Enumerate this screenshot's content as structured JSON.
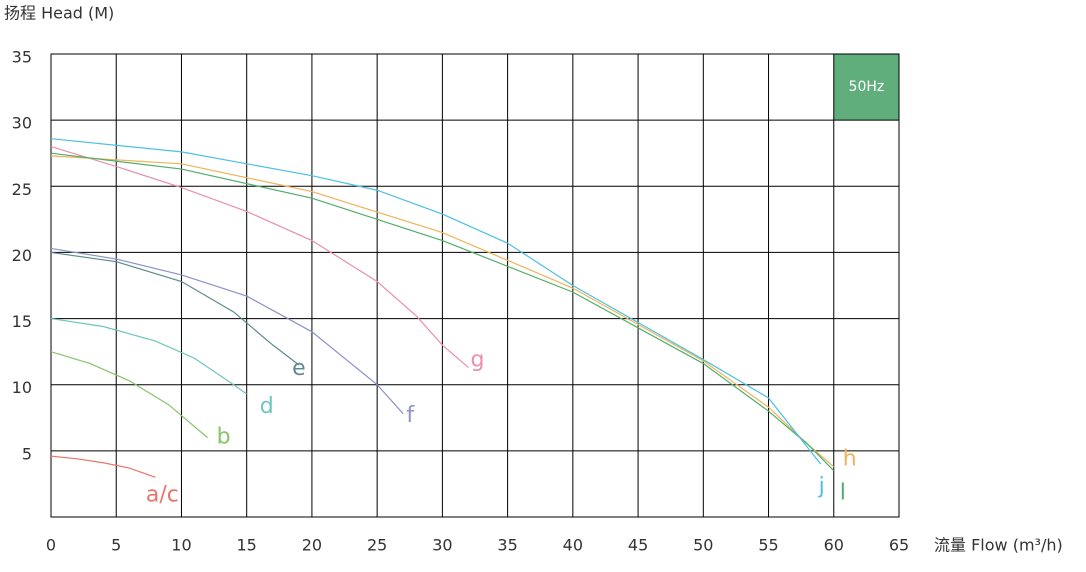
{
  "chart_data": {
    "type": "line",
    "y_axis_label": "扬程 Head (M)",
    "x_axis_label": "流量 Flow (m³/h)",
    "annotation": "50Hz",
    "annotation_color": "#5fae7c",
    "xlim": [
      0,
      65
    ],
    "xticks": [
      0,
      5,
      10,
      15,
      20,
      25,
      30,
      35,
      40,
      45,
      50,
      55,
      60,
      65
    ],
    "ylim": [
      0,
      35
    ],
    "yticks": [
      5,
      10,
      15,
      20,
      25,
      30,
      35
    ],
    "grid": true,
    "series": [
      {
        "name": "a/c",
        "color": "#e8756a",
        "x": [
          0,
          2,
          4,
          6,
          8
        ],
        "values": [
          4.6,
          4.4,
          4.1,
          3.7,
          3.0
        ]
      },
      {
        "name": "b",
        "color": "#86c56a",
        "x": [
          0,
          3,
          6,
          9,
          12
        ],
        "values": [
          12.5,
          11.6,
          10.3,
          8.5,
          6.0
        ]
      },
      {
        "name": "d",
        "color": "#6cc6bd",
        "x": [
          0,
          4,
          8,
          11,
          14,
          15
        ],
        "values": [
          15,
          14.4,
          13.3,
          12,
          10,
          9.3
        ]
      },
      {
        "name": "e",
        "color": "#5f8a8f",
        "x": [
          0,
          5,
          10,
          14,
          17,
          19
        ],
        "values": [
          20,
          19.3,
          17.8,
          15.5,
          13,
          11.5
        ]
      },
      {
        "name": "f",
        "color": "#8b92c8",
        "x": [
          0,
          5,
          10,
          15,
          20,
          25,
          27
        ],
        "values": [
          20.3,
          19.5,
          18.3,
          16.7,
          14,
          10,
          7.8
        ]
      },
      {
        "name": "g",
        "color": "#e98fb0",
        "x": [
          0,
          5,
          10,
          15,
          20,
          25,
          28,
          30,
          32
        ],
        "values": [
          28,
          26.5,
          24.9,
          23.1,
          20.9,
          17.8,
          15.2,
          13,
          11.3
        ]
      },
      {
        "name": "h",
        "color": "#f0b25c",
        "x": [
          0,
          10,
          20,
          30,
          40,
          50,
          55,
          58,
          60
        ],
        "values": [
          27.3,
          26.7,
          24.6,
          21.5,
          17.3,
          11.8,
          8.3,
          5.5,
          3.8
        ]
      },
      {
        "name": "l",
        "color": "#4fae6a",
        "x": [
          0,
          10,
          20,
          30,
          40,
          50,
          55,
          58,
          60
        ],
        "values": [
          27.5,
          26.3,
          24.1,
          20.9,
          17,
          11.6,
          8.0,
          5.5,
          3.5
        ]
      },
      {
        "name": "j",
        "color": "#4cc0e2",
        "x": [
          0,
          10,
          20,
          25,
          30,
          35,
          40,
          45,
          50,
          55,
          59
        ],
        "values": [
          28.6,
          27.6,
          25.8,
          24.7,
          22.9,
          20.7,
          17.5,
          14.7,
          11.9,
          9.0,
          4.0
        ]
      }
    ]
  }
}
